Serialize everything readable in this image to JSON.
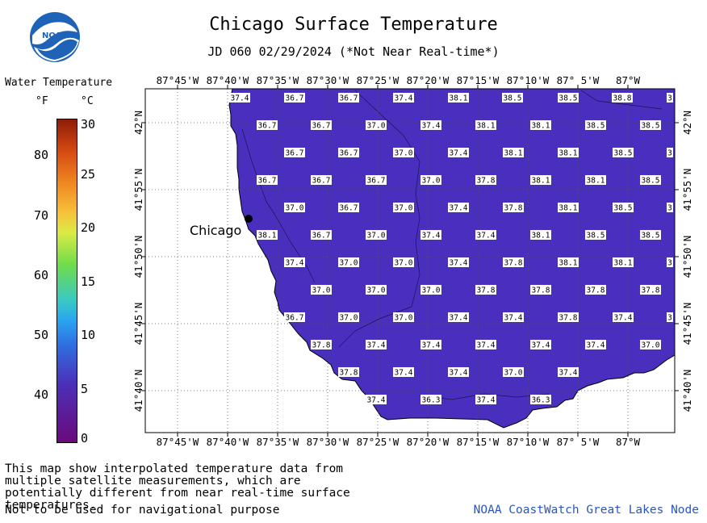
{
  "header": {
    "title": "Chicago Surface Temperature",
    "subtitle": "JD 060 02/29/2024 (*Not Near Real-time*)"
  },
  "logo": {
    "text": "NOAA",
    "icon": "noaa-logo-icon"
  },
  "legend": {
    "title": "Water Temperature",
    "unit_f": "°F",
    "unit_c": "°C",
    "ticks_f": [
      "80",
      "70",
      "60",
      "50",
      "40"
    ],
    "ticks_c": [
      "30",
      "25",
      "20",
      "15",
      "10",
      "5",
      "0"
    ],
    "range_f": [
      32,
      86
    ],
    "range_c": [
      0,
      30
    ]
  },
  "map": {
    "top_lon_labels": [
      "87°45'W",
      "87°40'W",
      "87°35'W",
      "87°30'W",
      "87°25'W",
      "87°20'W",
      "87°15'W",
      "87°10'W",
      "87° 5'W",
      "87°W"
    ],
    "bottom_lon_labels": [
      "87°45'W",
      "87°40'W",
      "87°35'W",
      "87°30'W",
      "87°25'W",
      "87°20'W",
      "87°15'W",
      "87°10'W",
      "87° 5'W",
      "87°W"
    ],
    "lat_labels": [
      "42°N",
      "41°55'N",
      "41°50'N",
      "41°45'N",
      "41°40'N"
    ],
    "city": "Chicago",
    "water_color": "#4a2fbe",
    "temperature_rows": [
      [
        "37.4",
        "36.7",
        "36.7",
        "37.4",
        "38.1",
        "38.5",
        "38.5",
        "38.8",
        "3"
      ],
      [
        "36.7",
        "36.7",
        "37.0",
        "37.4",
        "38.1",
        "38.1",
        "38.5",
        "38.5"
      ],
      [
        "36.7",
        "36.7",
        "37.0",
        "37.4",
        "38.1",
        "38.1",
        "38.5",
        "3"
      ],
      [
        "36.7",
        "36.7",
        "36.7",
        "37.0",
        "37.8",
        "38.1",
        "38.1",
        "38.5"
      ],
      [
        "37.0",
        "36.7",
        "37.0",
        "37.4",
        "37.8",
        "38.1",
        "38.5",
        "3"
      ],
      [
        "38.1",
        "36.7",
        "37.0",
        "37.4",
        "37.4",
        "38.1",
        "38.5",
        "38.5"
      ],
      [
        "37.4",
        "37.0",
        "37.0",
        "37.4",
        "37.8",
        "38.1",
        "38.1",
        "3"
      ],
      [
        "37.0",
        "37.0",
        "37.0",
        "37.8",
        "37.8",
        "37.8",
        "37.8"
      ],
      [
        "36.7",
        "37.0",
        "37.0",
        "37.4",
        "37.4",
        "37.8",
        "37.4",
        "3"
      ],
      [
        "37.8",
        "37.4",
        "37.4",
        "37.4",
        "37.4",
        "37.4",
        "37.0"
      ],
      [
        "37.8",
        "37.4",
        "37.4",
        "37.0",
        "37.4"
      ],
      [
        "37.4",
        "36.3",
        "37.4",
        "36.3"
      ]
    ]
  },
  "footer": {
    "note": "This map show interpolated temperature data from multiple satellite measurements, which are potentially different from near real-time surface temperatures.",
    "nav_warning": "Not to be used for navigational purpose",
    "credit": "NOAA CoastWatch Great Lakes Node"
  }
}
